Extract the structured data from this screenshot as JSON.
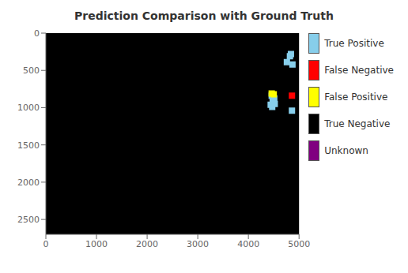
{
  "chart_data": {
    "type": "scatter",
    "title": "Prediction Comparison with Ground Truth",
    "xlim": [
      0,
      5000
    ],
    "ylim": [
      2700,
      0
    ],
    "xticks": [
      0,
      1000,
      2000,
      3000,
      4000,
      5000
    ],
    "yticks": [
      0,
      500,
      1000,
      1500,
      2000,
      2500
    ],
    "grid": false,
    "legend": "right",
    "marker": "square",
    "series": [
      {
        "name": "True Positive",
        "color": "#87CEEB",
        "x": [
          4820,
          4840,
          4760,
          4870,
          4460,
          4500,
          4480,
          4440,
          4520,
          4510,
          4470,
          4860
        ],
        "y": [
          310,
          280,
          390,
          420,
          840,
          870,
          910,
          960,
          950,
          880,
          990,
          1040
        ]
      },
      {
        "name": "False Negative",
        "color": "#FF0000",
        "x": [
          4860
        ],
        "y": [
          840
        ]
      },
      {
        "name": "False Positive",
        "color": "#FFFF00",
        "x": [
          4460,
          4500
        ],
        "y": [
          810,
          820
        ]
      },
      {
        "name": "True Negative",
        "color": "#000000",
        "x": [],
        "y": []
      },
      {
        "name": "Unknown",
        "color": "#800080",
        "x": [],
        "y": []
      }
    ]
  }
}
